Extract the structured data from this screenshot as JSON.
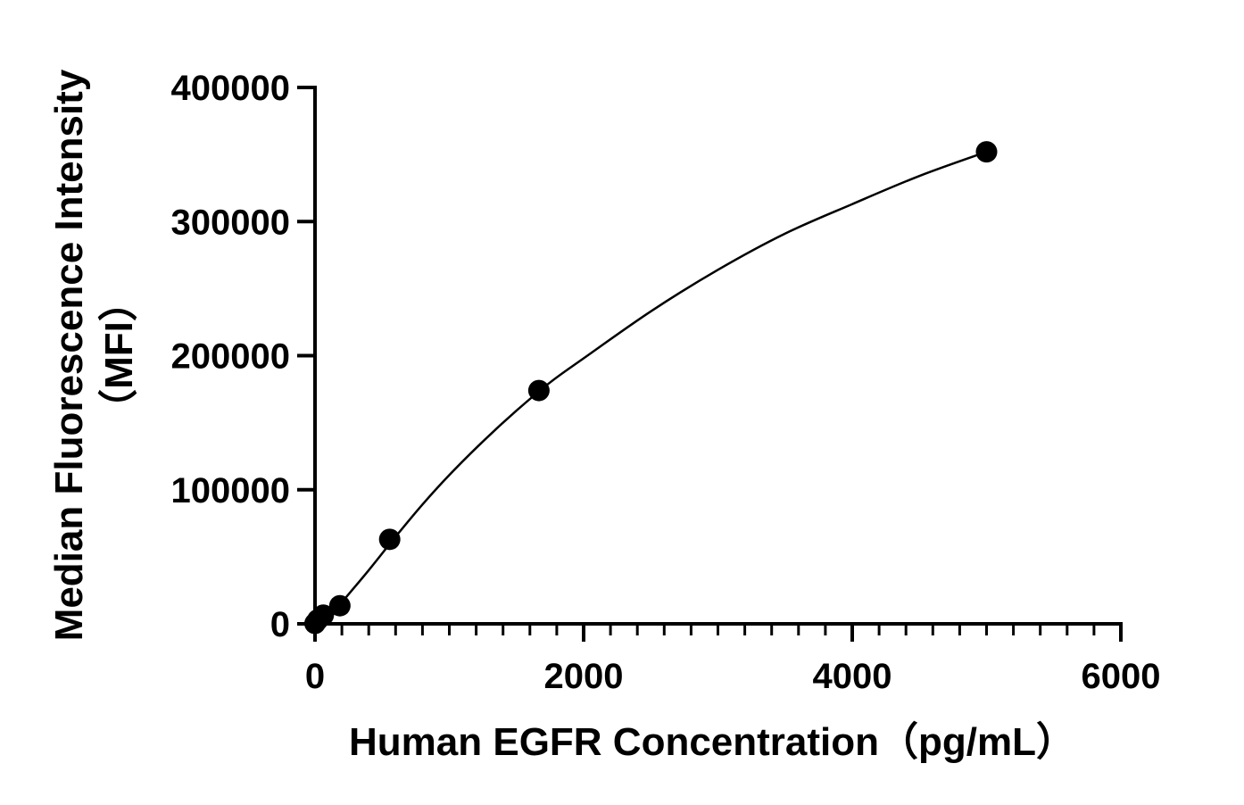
{
  "chart_data": {
    "type": "scatter",
    "xlabel": "Human EGFR Concentration（pg/mL）",
    "ylabel_lines": [
      "Median Fluorescence Intensity",
      "（MFI）"
    ],
    "xlim": [
      0,
      6000
    ],
    "ylim": [
      0,
      400000
    ],
    "x_ticks": [
      0,
      2000,
      4000,
      6000
    ],
    "x_tick_labels": [
      "0",
      "2000",
      "4000",
      "6000"
    ],
    "x_minor_step": 200,
    "y_ticks": [
      0,
      100000,
      200000,
      300000,
      400000
    ],
    "y_tick_labels": [
      "0",
      "100000",
      "200000",
      "300000",
      "400000"
    ],
    "grid": false,
    "legend": "none",
    "series": [
      {
        "x": [
          0,
          20.6,
          61.7,
          185,
          556,
          1667,
          5000
        ],
        "y": [
          300,
          3000,
          6500,
          13500,
          63000,
          174000,
          352000
        ]
      }
    ],
    "fit_curve": {
      "x": [
        0,
        100,
        200,
        400,
        600,
        800,
        1000,
        1250,
        1500,
        1750,
        2000,
        2500,
        3000,
        3500,
        4000,
        4500,
        5000
      ],
      "y": [
        0,
        3000,
        16000,
        40000,
        65000,
        89000,
        111000,
        136000,
        159000,
        180000,
        198000,
        233000,
        264000,
        291000,
        313000,
        334000,
        352000
      ]
    },
    "colors": {
      "axis": "#000000",
      "marker": "#000000",
      "curve": "#000000",
      "background": "#ffffff"
    }
  }
}
